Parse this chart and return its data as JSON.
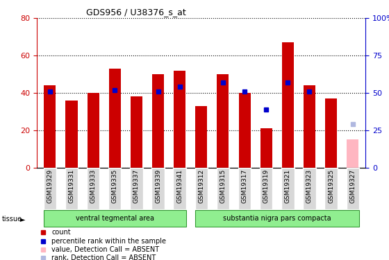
{
  "title": "GDS956 / U38376_s_at",
  "samples": [
    "GSM19329",
    "GSM19331",
    "GSM19333",
    "GSM19335",
    "GSM19337",
    "GSM19339",
    "GSM19341",
    "GSM19312",
    "GSM19315",
    "GSM19317",
    "GSM19319",
    "GSM19321",
    "GSM19323",
    "GSM19325",
    "GSM19327"
  ],
  "count_values": [
    44,
    36,
    40,
    53,
    38,
    50,
    52,
    33,
    50,
    40,
    21,
    67,
    44,
    37,
    null
  ],
  "rank_values": [
    51,
    null,
    null,
    52,
    null,
    51,
    54,
    null,
    57,
    51,
    39,
    57,
    51,
    null,
    null
  ],
  "absent_count": [
    null,
    null,
    null,
    null,
    null,
    null,
    null,
    null,
    null,
    null,
    null,
    null,
    null,
    null,
    15
  ],
  "absent_rank": [
    null,
    null,
    null,
    null,
    null,
    null,
    null,
    null,
    null,
    null,
    null,
    null,
    null,
    null,
    29
  ],
  "groups": [
    {
      "label": "ventral tegmental area",
      "start": 0,
      "end": 6
    },
    {
      "label": "substantia nigra pars compacta",
      "start": 7,
      "end": 14
    }
  ],
  "ylim_left": [
    0,
    80
  ],
  "ylim_right": [
    0,
    100
  ],
  "yticks_left": [
    0,
    20,
    40,
    60,
    80
  ],
  "yticks_right": [
    0,
    25,
    50,
    75,
    100
  ],
  "ytick_labels_right": [
    "0",
    "25",
    "50",
    "75",
    "100%"
  ],
  "left_axis_color": "#cc0000",
  "right_axis_color": "#0000cc",
  "bar_color_present": "#cc0000",
  "bar_color_absent": "#ffb6c1",
  "rank_color_present": "#0000cc",
  "rank_color_absent": "#b0b8e0",
  "group_bg_color": "#90ee90",
  "group_border_color": "#339933",
  "tick_label_bg": "#d8d8d8",
  "bar_width": 0.55,
  "figsize": [
    5.6,
    3.75
  ],
  "dpi": 100
}
